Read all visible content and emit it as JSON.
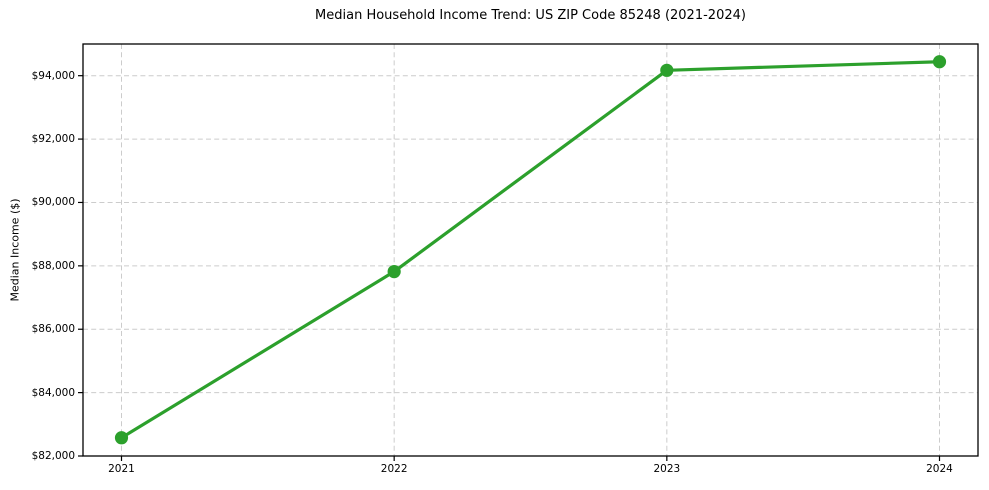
{
  "chart_data": {
    "type": "line",
    "title": "Median Household Income Trend: US ZIP Code 85248 (2021-2024)",
    "xlabel": "",
    "ylabel": "Median Income ($)",
    "categories": [
      "2021",
      "2022",
      "2023",
      "2024"
    ],
    "series": [
      {
        "name": "Median Household Income",
        "values": [
          82575,
          87820,
          94170,
          94440
        ]
      }
    ],
    "ylim": [
      82000,
      95000
    ],
    "yticks": [
      82000,
      84000,
      86000,
      88000,
      90000,
      92000,
      94000
    ],
    "ytick_labels": [
      "$82,000",
      "$84,000",
      "$86,000",
      "$88,000",
      "$90,000",
      "$92,000",
      "$94,000"
    ],
    "grid": true,
    "grid_style": "dashed",
    "legend": "none",
    "line_color": "#2ca02c",
    "marker": "circle",
    "grid_color": "#cccccc",
    "spine_color": "#000000",
    "text_color": "#000000",
    "background": "#ffffff"
  }
}
